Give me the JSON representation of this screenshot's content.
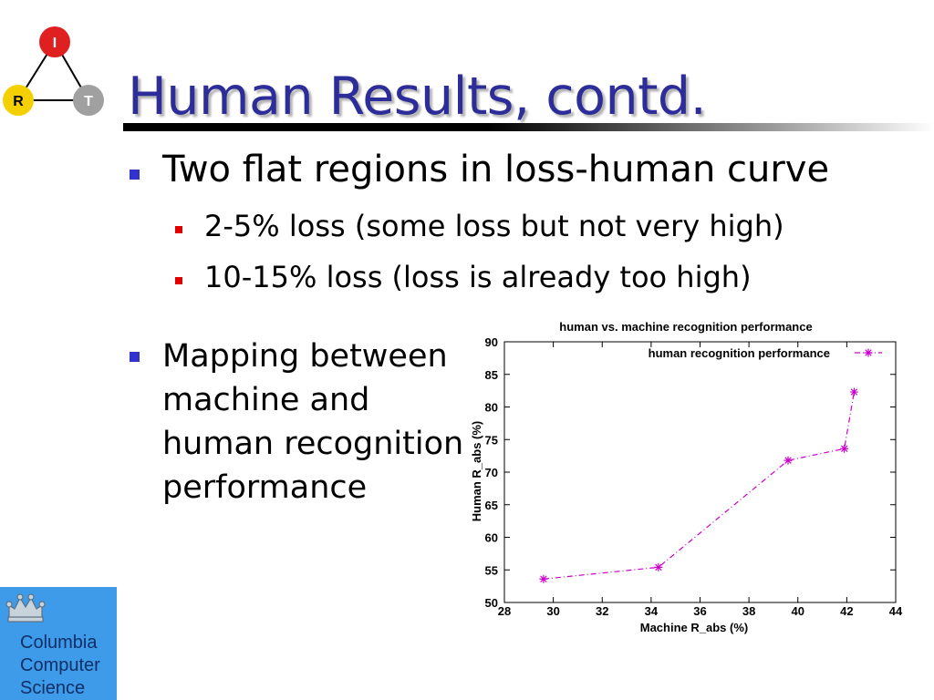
{
  "slide": {
    "title": "Human Results, contd.",
    "logo": {
      "top_node": "I",
      "left_node": "R",
      "right_node": "T"
    },
    "bullets": [
      {
        "level": 1,
        "text": "Two flat regions in loss-human curve"
      },
      {
        "level": 2,
        "text": "2-5% loss (some loss but not very high)"
      },
      {
        "level": 2,
        "text": "10-15% loss (loss is already too high)"
      },
      {
        "level": 1,
        "lines": [
          "Mapping between",
          "machine and",
          "human recognition",
          "performance"
        ]
      }
    ],
    "footer_logo": {
      "lines": [
        "Columbia",
        "Computer",
        "Science"
      ],
      "icon": "crown-icon"
    }
  },
  "colors": {
    "title": "#2d2d99",
    "bullet_l1": "#3333cc",
    "bullet_l2": "#e00000",
    "series": "#cc00cc",
    "node_I": "#e02020",
    "node_R": "#f5d000",
    "node_T": "#a0a0a0",
    "cu_bg": "#3d9be9"
  },
  "chart_data": {
    "type": "line",
    "title": "human vs. machine recognition performance",
    "xlabel": "Machine R_abs (%)",
    "ylabel": "Human R_abs (%)",
    "xlim": [
      28,
      44
    ],
    "ylim": [
      50,
      90
    ],
    "xticks": [
      28,
      30,
      32,
      34,
      36,
      38,
      40,
      42,
      44
    ],
    "yticks": [
      50,
      55,
      60,
      65,
      70,
      75,
      80,
      85,
      90
    ],
    "legend_position": "top-right",
    "grid": false,
    "series": [
      {
        "name": "human recognition performance",
        "x": [
          29.6,
          34.3,
          39.6,
          41.9,
          42.3
        ],
        "y": [
          53.6,
          55.4,
          71.8,
          73.6,
          82.3
        ]
      }
    ]
  }
}
